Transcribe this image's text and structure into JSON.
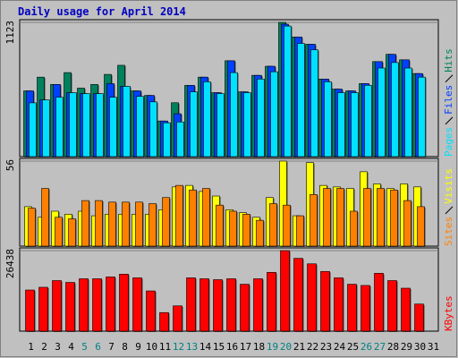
{
  "chart_data": [
    {
      "type": "bar",
      "title": "Daily usage for April 2014",
      "ylim": [
        0,
        1123
      ],
      "yticks": [
        1123
      ],
      "series": [
        {
          "name": "Hits",
          "color": "#00805c",
          "values": [
            550,
            665,
            604,
            703,
            573,
            604,
            688,
            764,
            550,
            512,
            298,
            451,
            596,
            665,
            535,
            802,
            542,
            680,
            756,
            1123,
            1001,
            940,
            649,
            565,
            550,
            611,
            795,
            856,
            810,
            695,
            null
          ]
        },
        {
          "name": "Files",
          "color": "#0040ff",
          "values": [
            550,
            474,
            604,
            535,
            527,
            527,
            611,
            588,
            550,
            512,
            298,
            359,
            596,
            665,
            535,
            802,
            542,
            680,
            756,
            1108,
            1001,
            940,
            649,
            565,
            550,
            611,
            795,
            856,
            810,
            695,
            null
          ]
        },
        {
          "name": "Pages",
          "color": "#00e0ff",
          "values": [
            450,
            474,
            497,
            535,
            527,
            527,
            497,
            588,
            504,
            458,
            283,
            290,
            542,
            626,
            527,
            703,
            535,
            649,
            710,
            1092,
            947,
            894,
            626,
            535,
            535,
            596,
            741,
            787,
            741,
            665,
            null
          ]
        }
      ]
    },
    {
      "type": "bar",
      "ylim": [
        0,
        56
      ],
      "yticks": [
        56
      ],
      "series": [
        {
          "name": "Visits",
          "color": "#ffff00",
          "values": [
            26,
            19,
            23,
            21,
            23,
            20,
            21,
            21,
            21,
            21,
            24,
            39,
            40,
            36,
            33,
            24,
            22,
            19,
            32,
            56,
            20,
            55,
            40,
            39,
            38,
            49,
            41,
            38,
            41,
            39,
            null
          ]
        },
        {
          "name": "Sites",
          "color": "#ff8000",
          "values": [
            25,
            38,
            19,
            18,
            30,
            30,
            29,
            29,
            29,
            28,
            32,
            40,
            37,
            38,
            27,
            23,
            21,
            17,
            28,
            27,
            20,
            34,
            38,
            38,
            23,
            38,
            38,
            37,
            30,
            26,
            null
          ]
        }
      ]
    },
    {
      "type": "bar",
      "ylim": [
        0,
        26438
      ],
      "yticks": [
        26438
      ],
      "categories": [
        "1",
        "2",
        "3",
        "4",
        "5",
        "6",
        "7",
        "8",
        "9",
        "10",
        "11",
        "12",
        "13",
        "14",
        "15",
        "16",
        "17",
        "18",
        "19",
        "20",
        "21",
        "22",
        "23",
        "24",
        "25",
        "26",
        "27",
        "28",
        "29",
        "30",
        "31"
      ],
      "highlighted_categories": [
        "5",
        "6",
        "12",
        "13",
        "19",
        "20",
        "26",
        "27"
      ],
      "highlight_color": "#008080",
      "series": [
        {
          "name": "KBytes",
          "color": "#ff0000",
          "values": [
            13500,
            14400,
            16600,
            16000,
            17200,
            17200,
            17800,
            18700,
            17500,
            13200,
            6100,
            8300,
            17500,
            17200,
            16900,
            17200,
            15400,
            17200,
            19300,
            26438,
            23900,
            22100,
            19600,
            17500,
            15400,
            15000,
            19000,
            16600,
            14100,
            8900,
            null
          ]
        }
      ]
    }
  ]
}
